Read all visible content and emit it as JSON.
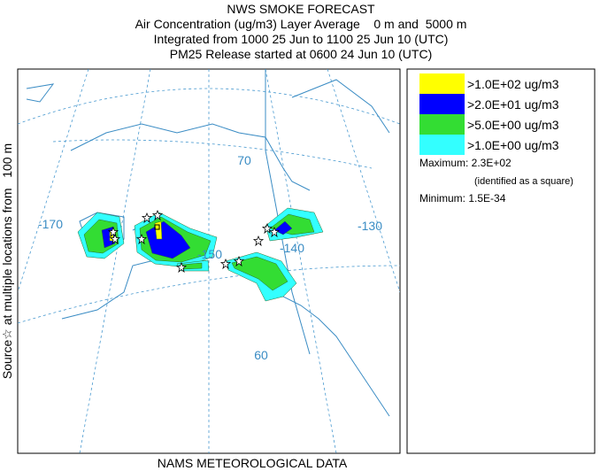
{
  "header": {
    "lines": [
      "NWS SMOKE FORECAST",
      "Air Concentration (ug/m3) Layer Average    0 m and  5000 m",
      "Integrated from 1000 25 Jun to 1100 25 Jun 10 (UTC)",
      "PM25 Release started at 0600 24 Jun 10 (UTC)"
    ]
  },
  "side_label": "Source☆ at multiple locations from   100 m",
  "footer": "NAMS METEOROLOGICAL DATA",
  "legend": {
    "items": [
      {
        "label": ">1.0E+02 ug/m3",
        "color": "#ffff00"
      },
      {
        "label": ">2.0E+01 ug/m3",
        "color": "#0000ff"
      },
      {
        "label": ">5.0E+00 ug/m3",
        "color": "#33dd33"
      },
      {
        "label": ">1.0E+00 ug/m3",
        "color": "#33ffff"
      }
    ],
    "maximum": "Maximum: 2.3E+02",
    "maximum_note": "(identified as a square)",
    "minimum": "Minimum: 1.5E-34"
  },
  "map": {
    "labels": [
      "-170",
      "-150",
      "-140",
      "-130",
      "70",
      "60"
    ]
  }
}
